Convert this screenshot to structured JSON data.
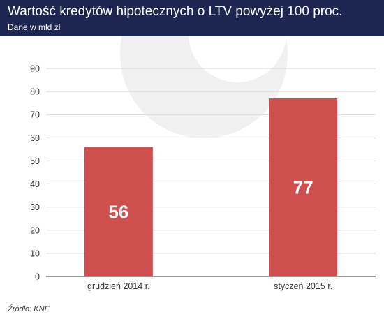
{
  "header": {
    "title": "Wartość kredytów hipotecznych o LTV powyżej 100 proc.",
    "subtitle": "Dane w mld zł"
  },
  "source": "Źródło: KNF",
  "colors": {
    "header_bg": "#1d2650",
    "bar": "#cf4e4e",
    "gridline": "#d6d6d6",
    "axis": "#333333",
    "watermark": "#f0f0f0"
  },
  "chart_data": {
    "type": "bar",
    "title": "Wartość kredytów hipotecznych o LTV powyżej 100 proc.",
    "subtitle": "Dane w mld zł",
    "categories": [
      "grudzień 2014 r.",
      "styczeń 2015 r."
    ],
    "values": [
      56,
      77
    ],
    "data_labels": [
      "56",
      "77"
    ],
    "yticks": [
      "0",
      "10",
      "20",
      "30",
      "40",
      "50",
      "60",
      "70",
      "80",
      "90"
    ],
    "ylim": [
      0,
      90
    ],
    "grid": true,
    "legend": "none",
    "xlabel": "",
    "ylabel": ""
  }
}
